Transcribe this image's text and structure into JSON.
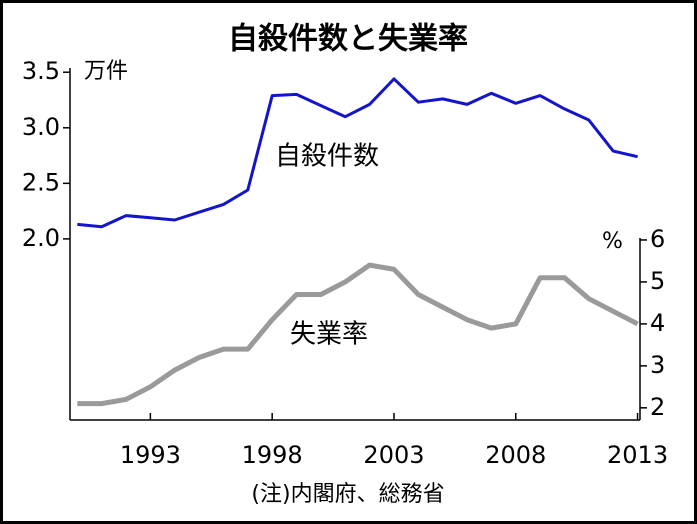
{
  "chart_data": {
    "type": "line",
    "title": "自殺件数と失業率",
    "y_unit_label": "万件",
    "y2_unit_label": "%",
    "note": "(注)内閣府、総務省",
    "x": [
      1990,
      1991,
      1992,
      1993,
      1994,
      1995,
      1996,
      1997,
      1998,
      1999,
      2000,
      2001,
      2002,
      2003,
      2004,
      2005,
      2006,
      2007,
      2008,
      2009,
      2010,
      2011,
      2012,
      2013
    ],
    "xlim": [
      1989.7,
      2013.1
    ],
    "xticks": [
      1993,
      1998,
      2003,
      2008,
      2013
    ],
    "ylim": [
      0.37,
      3.52
    ],
    "yticks": [
      {
        "value": 2,
        "label": "2.0"
      },
      2.5,
      {
        "value": 3,
        "label": "3.0"
      },
      3.5
    ],
    "y2lim": [
      1.71,
      10.05
    ],
    "y2ticks": [
      2,
      3,
      4,
      5,
      6
    ],
    "series": [
      {
        "name": "自殺件数",
        "color": "#1414c8",
        "axis": "y",
        "values": [
          2.13,
          2.11,
          2.21,
          2.19,
          2.17,
          2.24,
          2.31,
          2.44,
          3.29,
          3.3,
          3.2,
          3.1,
          3.21,
          3.44,
          3.23,
          3.26,
          3.21,
          3.31,
          3.22,
          3.29,
          3.17,
          3.07,
          2.79,
          2.74
        ]
      },
      {
        "name": "失業率",
        "color": "#9a9a9a",
        "axis": "y2",
        "values": [
          2.1,
          2.1,
          2.2,
          2.5,
          2.9,
          3.2,
          3.4,
          3.4,
          4.1,
          4.7,
          4.7,
          5.0,
          5.4,
          5.3,
          4.7,
          4.4,
          4.1,
          3.9,
          4.0,
          5.1,
          5.1,
          4.6,
          4.3,
          4.0
        ]
      }
    ]
  }
}
